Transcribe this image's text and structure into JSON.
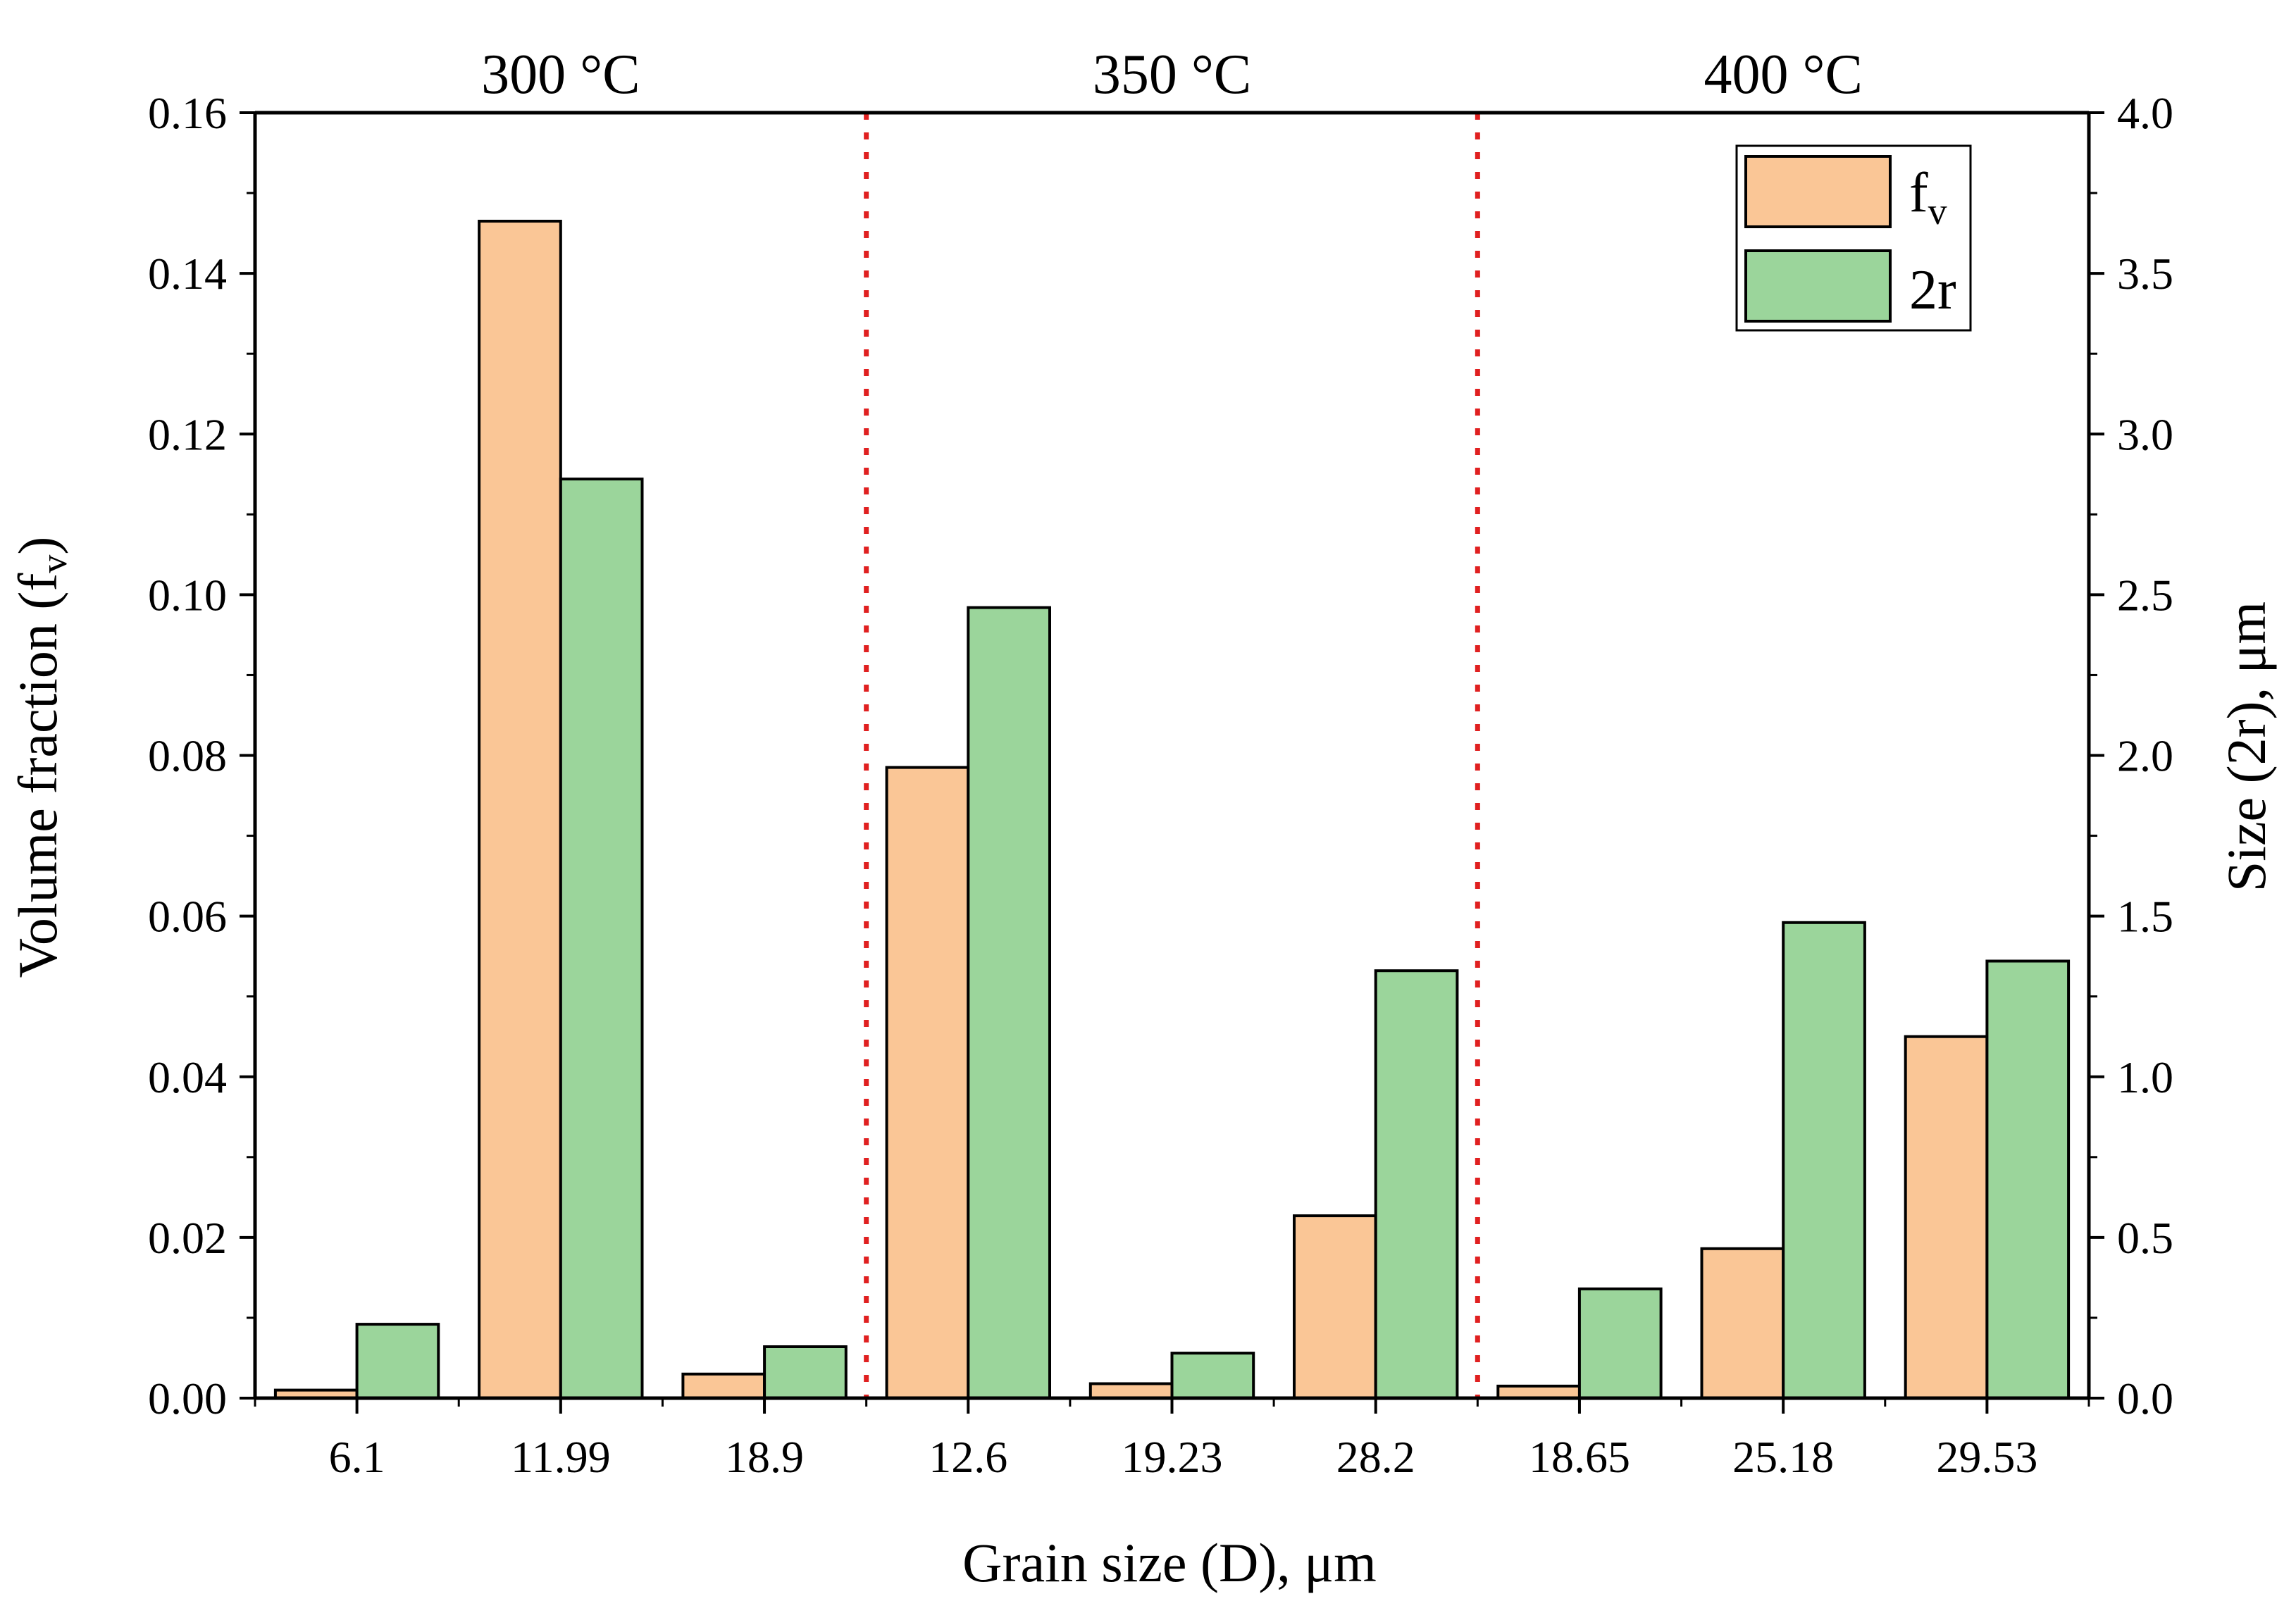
{
  "chart_data": {
    "type": "bar",
    "categories": [
      "6.1",
      "11.99",
      "18.9",
      "12.6",
      "19.23",
      "28.2",
      "18.65",
      "25.18",
      "29.53"
    ],
    "groups": [
      {
        "label": "300 °C",
        "start": 0,
        "end": 2
      },
      {
        "label": "350 °C",
        "start": 3,
        "end": 5
      },
      {
        "label": "400 °C",
        "start": 6,
        "end": 8
      }
    ],
    "series": [
      {
        "name": "f",
        "name_sub": "v",
        "axis": "left",
        "color": "#FAC696",
        "values": [
          0.001,
          0.1465,
          0.003,
          0.0785,
          0.0018,
          0.0227,
          0.0015,
          0.0186,
          0.045
        ]
      },
      {
        "name": "2r",
        "name_sub": "",
        "axis": "right",
        "color": "#9BD59B",
        "values": [
          0.23,
          2.86,
          0.16,
          2.46,
          0.14,
          1.33,
          0.34,
          1.48,
          1.36
        ]
      }
    ],
    "xlabel": "Grain size (D), μm",
    "ylabel": {
      "text": "Volume fraction (f",
      "sub": "v",
      "end": ")"
    },
    "y2label": "Size (2r), μm",
    "ylim": [
      0,
      0.16
    ],
    "y2lim": [
      0,
      4.0
    ],
    "yticks": [
      "0.00",
      "0.02",
      "0.04",
      "0.06",
      "0.08",
      "0.10",
      "0.12",
      "0.14",
      "0.16"
    ],
    "y2ticks": [
      "0.0",
      "0.5",
      "1.0",
      "1.5",
      "2.0",
      "2.5",
      "3.0",
      "3.5",
      "4.0"
    ],
    "separator_color": "#E02020",
    "legend_position": "top-right"
  }
}
